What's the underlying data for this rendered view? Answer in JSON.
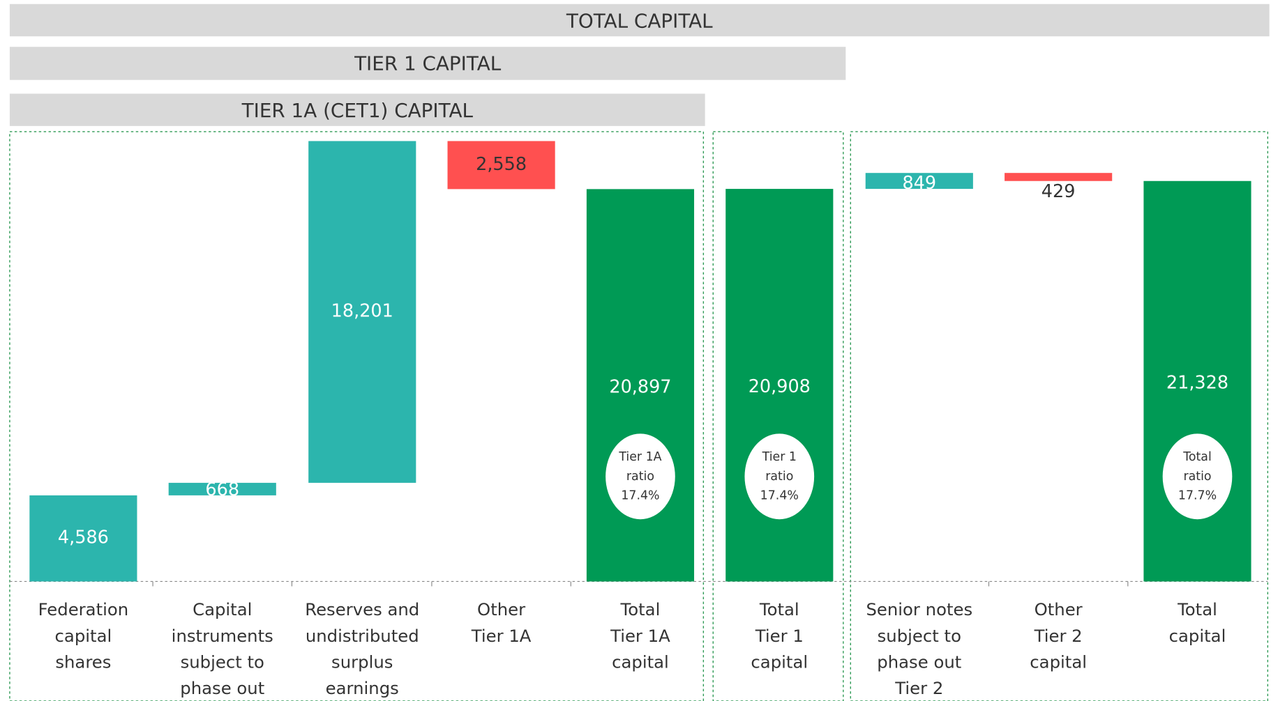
{
  "chart_data": {
    "type": "waterfall",
    "headers": [
      "TOTAL CAPITAL",
      "TIER 1 CAPITAL",
      "TIER 1A (CET1) CAPITAL"
    ],
    "categories": [
      [
        "Federation",
        "capital",
        "shares"
      ],
      [
        "Capital",
        "instruments",
        "subject to",
        "phase out"
      ],
      [
        "Reserves and",
        "undistributed",
        "surplus",
        "earnings"
      ],
      [
        "Other",
        "Tier 1A"
      ],
      [
        "Total",
        "Tier 1A",
        "capital"
      ],
      [
        "Total",
        "Tier 1",
        "capital"
      ],
      [
        "Senior notes",
        "subject to",
        "phase out",
        "Tier 2"
      ],
      [
        "Other",
        "Tier 2",
        "capital"
      ],
      [
        "Total",
        "capital"
      ]
    ],
    "values": [
      4586,
      668,
      18201,
      2558,
      20897,
      20908,
      849,
      429,
      21328
    ],
    "value_labels": [
      "4,586",
      "668",
      "18,201",
      "2,558",
      "20,897",
      "20,908",
      "849",
      "429",
      "21,328"
    ],
    "kinds": [
      "increase",
      "increase",
      "increase",
      "decrease",
      "total",
      "total",
      "increase",
      "decrease",
      "total"
    ],
    "colors": {
      "increase": "#2cb5ad",
      "decrease": "#ff5050",
      "total": "#009a55"
    },
    "ratio_labels": [
      null,
      null,
      null,
      null,
      [
        "Tier 1A",
        "ratio",
        "17.4%"
      ],
      [
        "Tier 1",
        "ratio",
        "17.4%"
      ],
      null,
      null,
      [
        "Total",
        "ratio",
        "17.7%"
      ]
    ],
    "ylim": [
      0,
      24000
    ]
  }
}
